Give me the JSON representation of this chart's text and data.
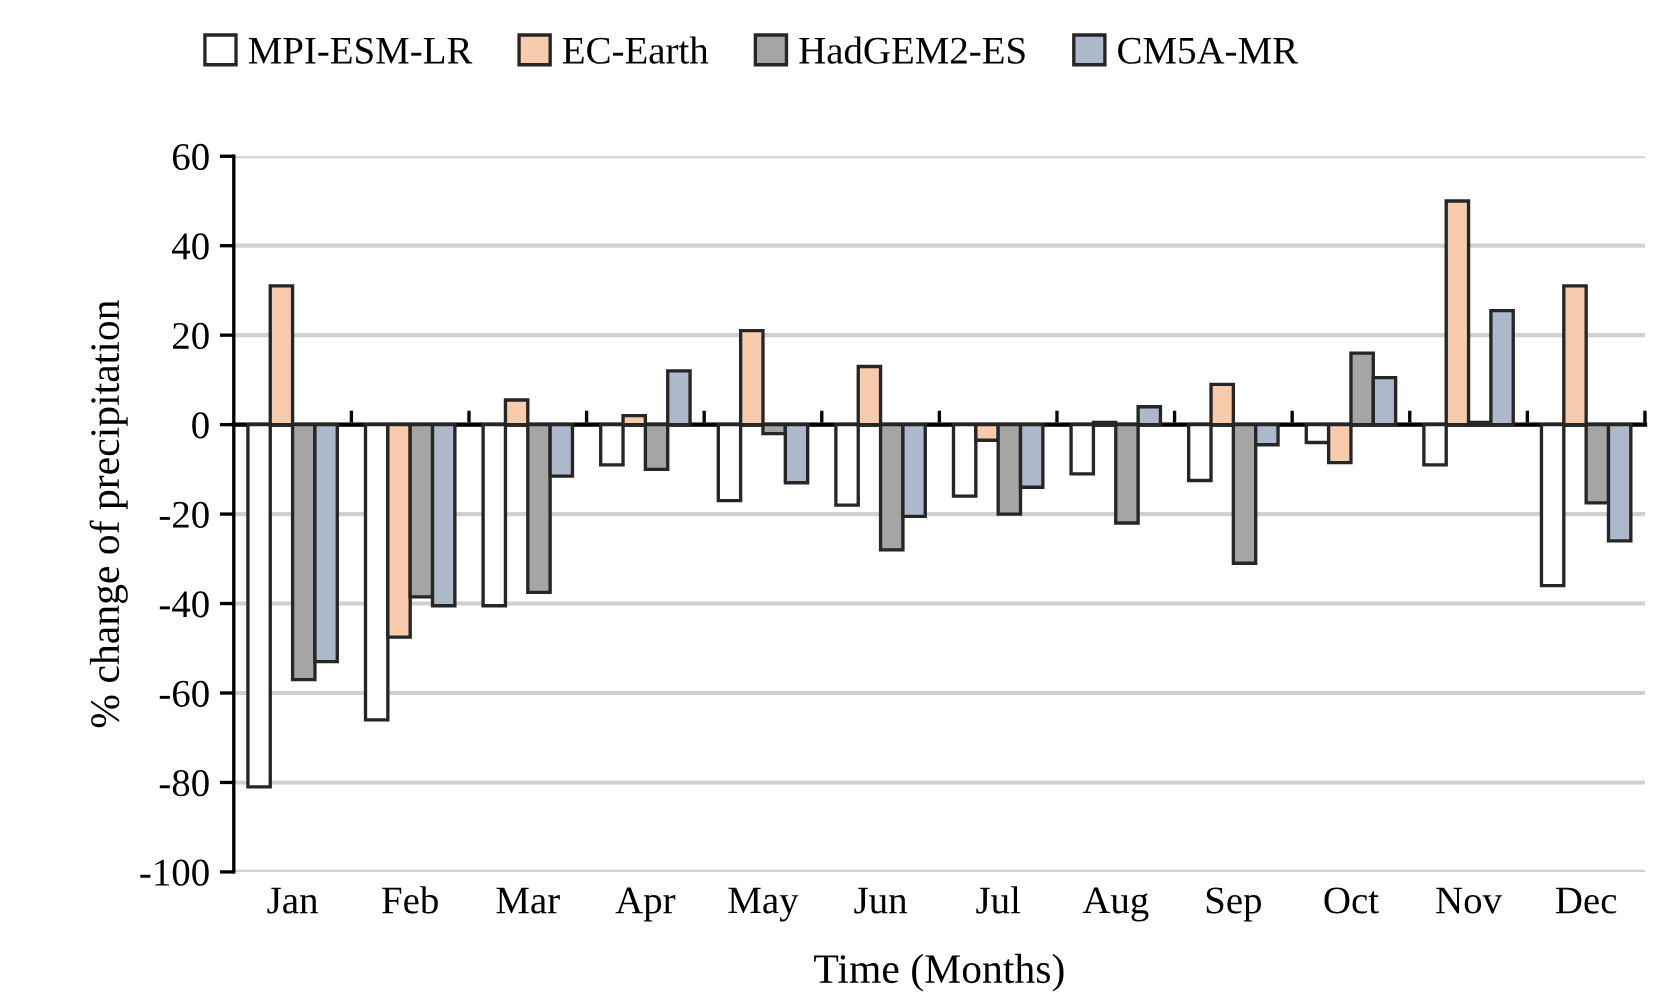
{
  "chart_data": {
    "type": "bar",
    "xlabel": "Time (Months)",
    "ylabel": "% change of precipitation",
    "categories": [
      "Jan",
      "Feb",
      "Mar",
      "Apr",
      "May",
      "Jun",
      "Jul",
      "Aug",
      "Sep",
      "Oct",
      "Nov",
      "Dec"
    ],
    "series": [
      {
        "name": "MPI-ESM-LR",
        "color": "#ffffff",
        "values": [
          -81,
          -66,
          -40.5,
          -9,
          -17,
          -18,
          -16,
          -11,
          -12.5,
          -4,
          -9,
          -36
        ]
      },
      {
        "name": "EC-Earth",
        "color": "#f8cbad",
        "values": [
          31,
          -47.5,
          5.5,
          2,
          21,
          13,
          -3.5,
          0.5,
          9,
          -8.5,
          50,
          31
        ]
      },
      {
        "name": "HadGEM2-ES",
        "color": "#a5a5a5",
        "values": [
          -57,
          -38.5,
          -37.5,
          -10,
          -2,
          -28,
          -20,
          -22,
          -31,
          16,
          0.5,
          -17.5
        ]
      },
      {
        "name": "CM5A-MR",
        "color": "#adb9ca",
        "values": [
          -53,
          -40.5,
          -11.5,
          12,
          -13,
          -20.5,
          -14,
          4,
          -4.5,
          10.5,
          25.5,
          -26
        ]
      }
    ],
    "ylim": [
      -100,
      60
    ],
    "yticks": [
      -100,
      -80,
      -60,
      -40,
      -20,
      0,
      20,
      40,
      60
    ],
    "grid": "y",
    "legend": "top"
  }
}
